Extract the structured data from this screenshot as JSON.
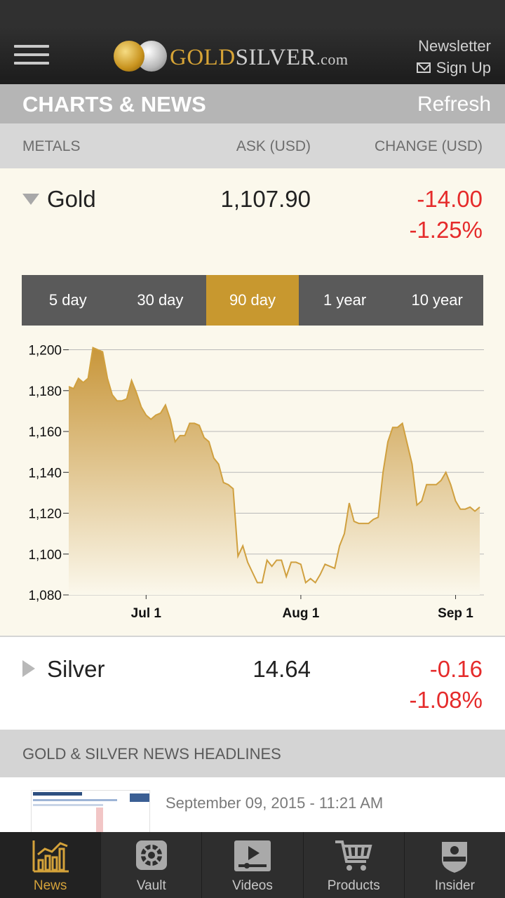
{
  "header": {
    "logo_gold": "GOLD",
    "logo_silver": "SILVER",
    "logo_domain": ".com",
    "newsletter_label": "Newsletter",
    "signup_label": "Sign Up"
  },
  "section": {
    "title": "CHARTS & NEWS",
    "refresh_label": "Refresh"
  },
  "columns": {
    "metals": "METALS",
    "ask": "ASK (USD)",
    "change": "CHANGE (USD)"
  },
  "metals": [
    {
      "name": "Gold",
      "ask": "1,107.90",
      "change": "-14.00",
      "change_pct": "-1.25%",
      "expanded": true
    },
    {
      "name": "Silver",
      "ask": "14.64",
      "change": "-0.16",
      "change_pct": "-1.08%",
      "expanded": false
    }
  ],
  "range_tabs": [
    {
      "label": "5 day",
      "active": false
    },
    {
      "label": "30 day",
      "active": false
    },
    {
      "label": "90 day",
      "active": true
    },
    {
      "label": "1 year",
      "active": false
    },
    {
      "label": "10 year",
      "active": false
    }
  ],
  "chart_data": {
    "type": "area",
    "series": [
      {
        "values": [
          1182,
          1181,
          1186,
          1184,
          1186,
          1201,
          1200,
          1199,
          1186,
          1178,
          1175,
          1175,
          1176,
          1185,
          1179,
          1172,
          1168,
          1166,
          1168,
          1169,
          1173,
          1166,
          1155,
          1158,
          1158,
          1164,
          1164,
          1163,
          1157,
          1155,
          1147,
          1144,
          1135,
          1134,
          1132,
          1099,
          1104,
          1096,
          1091,
          1086,
          1086,
          1097,
          1094,
          1097,
          1097,
          1089,
          1096,
          1096,
          1095,
          1086,
          1088,
          1086,
          1090,
          1095,
          1094,
          1093,
          1104,
          1110,
          1125,
          1116,
          1115,
          1115,
          1115,
          1117,
          1118,
          1140,
          1155,
          1162,
          1162,
          1164,
          1154,
          1144,
          1124,
          1126,
          1134,
          1134,
          1134,
          1136,
          1140,
          1134,
          1126,
          1122,
          1122,
          1123,
          1121,
          1123
        ]
      }
    ],
    "x_tick_labels": [
      "Jul 1",
      "Aug 1",
      "Sep 1"
    ],
    "x_tick_index": [
      16,
      48,
      80
    ],
    "y_ticks": [
      "1,200",
      "1,180",
      "1,160",
      "1,140",
      "1,120",
      "1,100",
      "1,080"
    ],
    "ylim": [
      1080,
      1205
    ],
    "line_color": "#d0a03f",
    "fill_color_top": "#c8963a",
    "fill_color_bottom": "#fbf8ec",
    "grid": true
  },
  "news": {
    "heading": "GOLD & SILVER NEWS HEADLINES",
    "items": [
      {
        "date": "September 09, 2015 - 11:21 AM"
      }
    ]
  },
  "tabbar": {
    "items": [
      {
        "label": "News",
        "icon": "news-chart-icon",
        "active": true
      },
      {
        "label": "Vault",
        "icon": "vault-icon",
        "active": false
      },
      {
        "label": "Videos",
        "icon": "video-play-icon",
        "active": false
      },
      {
        "label": "Products",
        "icon": "cart-icon",
        "active": false
      },
      {
        "label": "Insider",
        "icon": "insider-badge-icon",
        "active": false
      }
    ]
  },
  "colors": {
    "accent": "#c8982f",
    "negative": "#e52b2b",
    "topbar": "#1c1c1c"
  }
}
